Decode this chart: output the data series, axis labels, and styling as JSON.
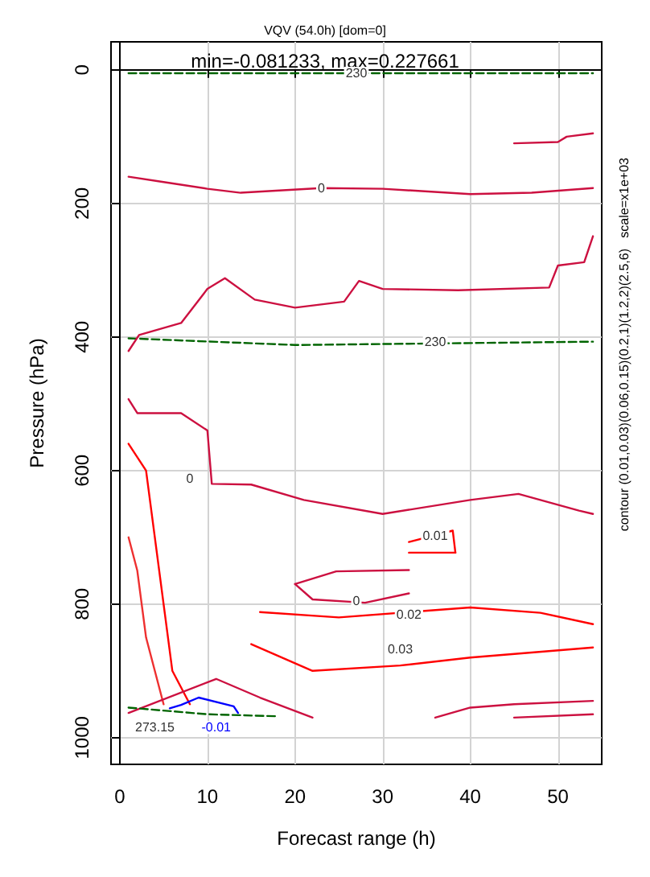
{
  "chart_data": {
    "type": "line",
    "title": "VQV (54.0h) [dom=0]",
    "subtitle": "min=-0.081233, max=0.227661",
    "xlabel": "Forecast range (h)",
    "ylabel": "Pressure (hPa)",
    "xlim": [
      -1,
      55
    ],
    "xticks": [
      0,
      10,
      20,
      30,
      40,
      50
    ],
    "ylim": [
      1040,
      -42
    ],
    "yticks": [
      0,
      200,
      400,
      600,
      800,
      1000
    ],
    "grid": true,
    "marker": "none",
    "line_style": "solid",
    "series": [
      {
        "color": "#006400",
        "line_style": "dashed",
        "x": [
          1,
          54
        ],
        "values": [
          5,
          5
        ]
      },
      {
        "color": "#006400",
        "line_style": "dashed",
        "x": [
          1,
          20,
          54
        ],
        "values": [
          402,
          412,
          407
        ]
      },
      {
        "color": "#cc1040",
        "x": [
          1,
          5,
          10,
          13.8,
          23,
          30,
          40,
          47,
          54
        ],
        "values": [
          160,
          168,
          178,
          184,
          177,
          178,
          186,
          184,
          177
        ]
      },
      {
        "color": "#cc1040",
        "x": [
          1,
          2.2,
          7,
          10,
          12,
          15.4,
          20,
          25.6,
          27.3,
          30,
          38.6,
          49,
          50,
          53,
          54
        ],
        "values": [
          421,
          397,
          379,
          328,
          312,
          344,
          356,
          347,
          316,
          328,
          330,
          326,
          293,
          288,
          249
        ]
      },
      {
        "color": "#cc1040",
        "x": [
          45,
          50,
          51,
          54
        ],
        "values": [
          110,
          108,
          100,
          95
        ]
      },
      {
        "color": "#cc1040",
        "x": [
          1,
          2,
          7,
          10,
          10.5,
          15,
          21,
          30,
          40,
          45.5,
          52.4,
          54
        ],
        "values": [
          493,
          514,
          514,
          540,
          620,
          621,
          644,
          665,
          644,
          635,
          660,
          665
        ]
      },
      {
        "color": "#ff0000",
        "x": [
          33,
          38,
          38.3
        ],
        "values": [
          707,
          690,
          723
        ]
      },
      {
        "color": "#ff0000",
        "x": [
          33,
          38.3
        ],
        "values": [
          723,
          723
        ]
      },
      {
        "color": "#cc1040",
        "x": [
          20,
          24.7,
          33
        ],
        "values": [
          770,
          751,
          749
        ]
      },
      {
        "color": "#cc1040",
        "x": [
          20,
          22,
          28,
          33
        ],
        "values": [
          770,
          793,
          798,
          784
        ]
      },
      {
        "color": "#ff0000",
        "x": [
          16,
          25,
          40,
          48,
          54
        ],
        "values": [
          812,
          820,
          805,
          813,
          830
        ]
      },
      {
        "color": "#ff0000",
        "x": [
          15,
          22,
          32,
          40,
          54
        ],
        "values": [
          860,
          900,
          892,
          880,
          865
        ]
      },
      {
        "color": "#ff0000",
        "x": [
          1,
          3,
          4,
          5,
          6,
          8
        ],
        "values": [
          560,
          600,
          700,
          800,
          900,
          950
        ]
      },
      {
        "color": "#ee3030",
        "x": [
          1,
          2,
          2.5,
          3,
          4,
          5
        ],
        "values": [
          700,
          750,
          800,
          850,
          900,
          950
        ]
      },
      {
        "color": "#0000ff",
        "x": [
          5.7,
          7,
          9,
          13,
          13.5
        ],
        "values": [
          956,
          951,
          940,
          953,
          963
        ]
      },
      {
        "color": "#cc1040",
        "x": [
          1,
          11,
          16,
          22
        ],
        "values": [
          963,
          912,
          940,
          970
        ]
      },
      {
        "color": "#006400",
        "line_style": "dashed",
        "x": [
          1,
          10,
          18
        ],
        "values": [
          955,
          965,
          968
        ]
      },
      {
        "color": "#cc1040",
        "x": [
          36,
          40,
          45,
          54
        ],
        "values": [
          970,
          955,
          950,
          945
        ]
      },
      {
        "color": "#cc1040",
        "x": [
          45,
          54
        ],
        "values": [
          970,
          965
        ]
      }
    ],
    "annotations": [
      {
        "text": "230",
        "x": 27,
        "y": 5
      },
      {
        "text": "230",
        "x": 36,
        "y": 407
      },
      {
        "text": "0",
        "x": 23,
        "y": 177
      },
      {
        "text": "0",
        "x": 8,
        "y": 612
      },
      {
        "text": "0.01",
        "x": 36,
        "y": 698
      },
      {
        "text": "0",
        "x": 27,
        "y": 796
      },
      {
        "text": "0.02",
        "x": 33,
        "y": 816
      },
      {
        "text": "0.03",
        "x": 32,
        "y": 868
      },
      {
        "text": "-0.01",
        "x": 11,
        "y": 985
      },
      {
        "text": "273.15",
        "x": 4,
        "y": 985
      },
      "contour (0.01,0.03)(0.06,0.15)(0.2,1)(1.2,2)(2.5,6)   scale=x1e+03"
    ]
  }
}
